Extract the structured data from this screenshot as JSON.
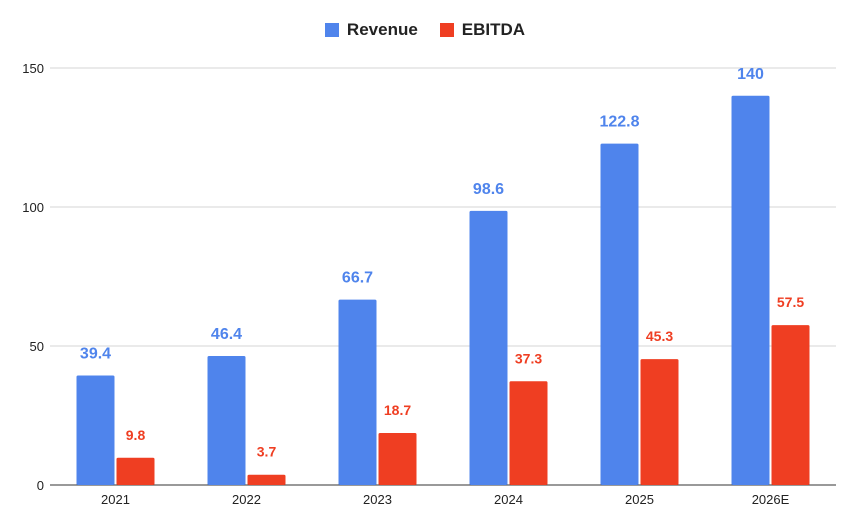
{
  "chart_data": {
    "type": "bar",
    "categories": [
      "2021",
      "2022",
      "2023",
      "2024",
      "2025",
      "2026E"
    ],
    "series": [
      {
        "name": "Revenue",
        "color": "#4f84ec",
        "values": [
          39.4,
          46.4,
          66.7,
          98.6,
          122.8,
          140
        ]
      },
      {
        "name": "EBITDA",
        "color": "#ef3e22",
        "values": [
          9.8,
          3.7,
          18.7,
          37.3,
          45.3,
          57.5
        ]
      }
    ],
    "value_labels": {
      "Revenue": [
        "39.4",
        "46.4",
        "66.7",
        "98.6",
        "122.8",
        "140"
      ],
      "EBITDA": [
        "9.8",
        "3.7",
        "18.7",
        "37.3",
        "45.3",
        "57.5"
      ]
    },
    "yticks": [
      "0",
      "50",
      "100",
      "150"
    ],
    "ylim": [
      0,
      150
    ],
    "grid": true,
    "legend": "top-center",
    "title": "",
    "xlabel": "",
    "ylabel": ""
  }
}
